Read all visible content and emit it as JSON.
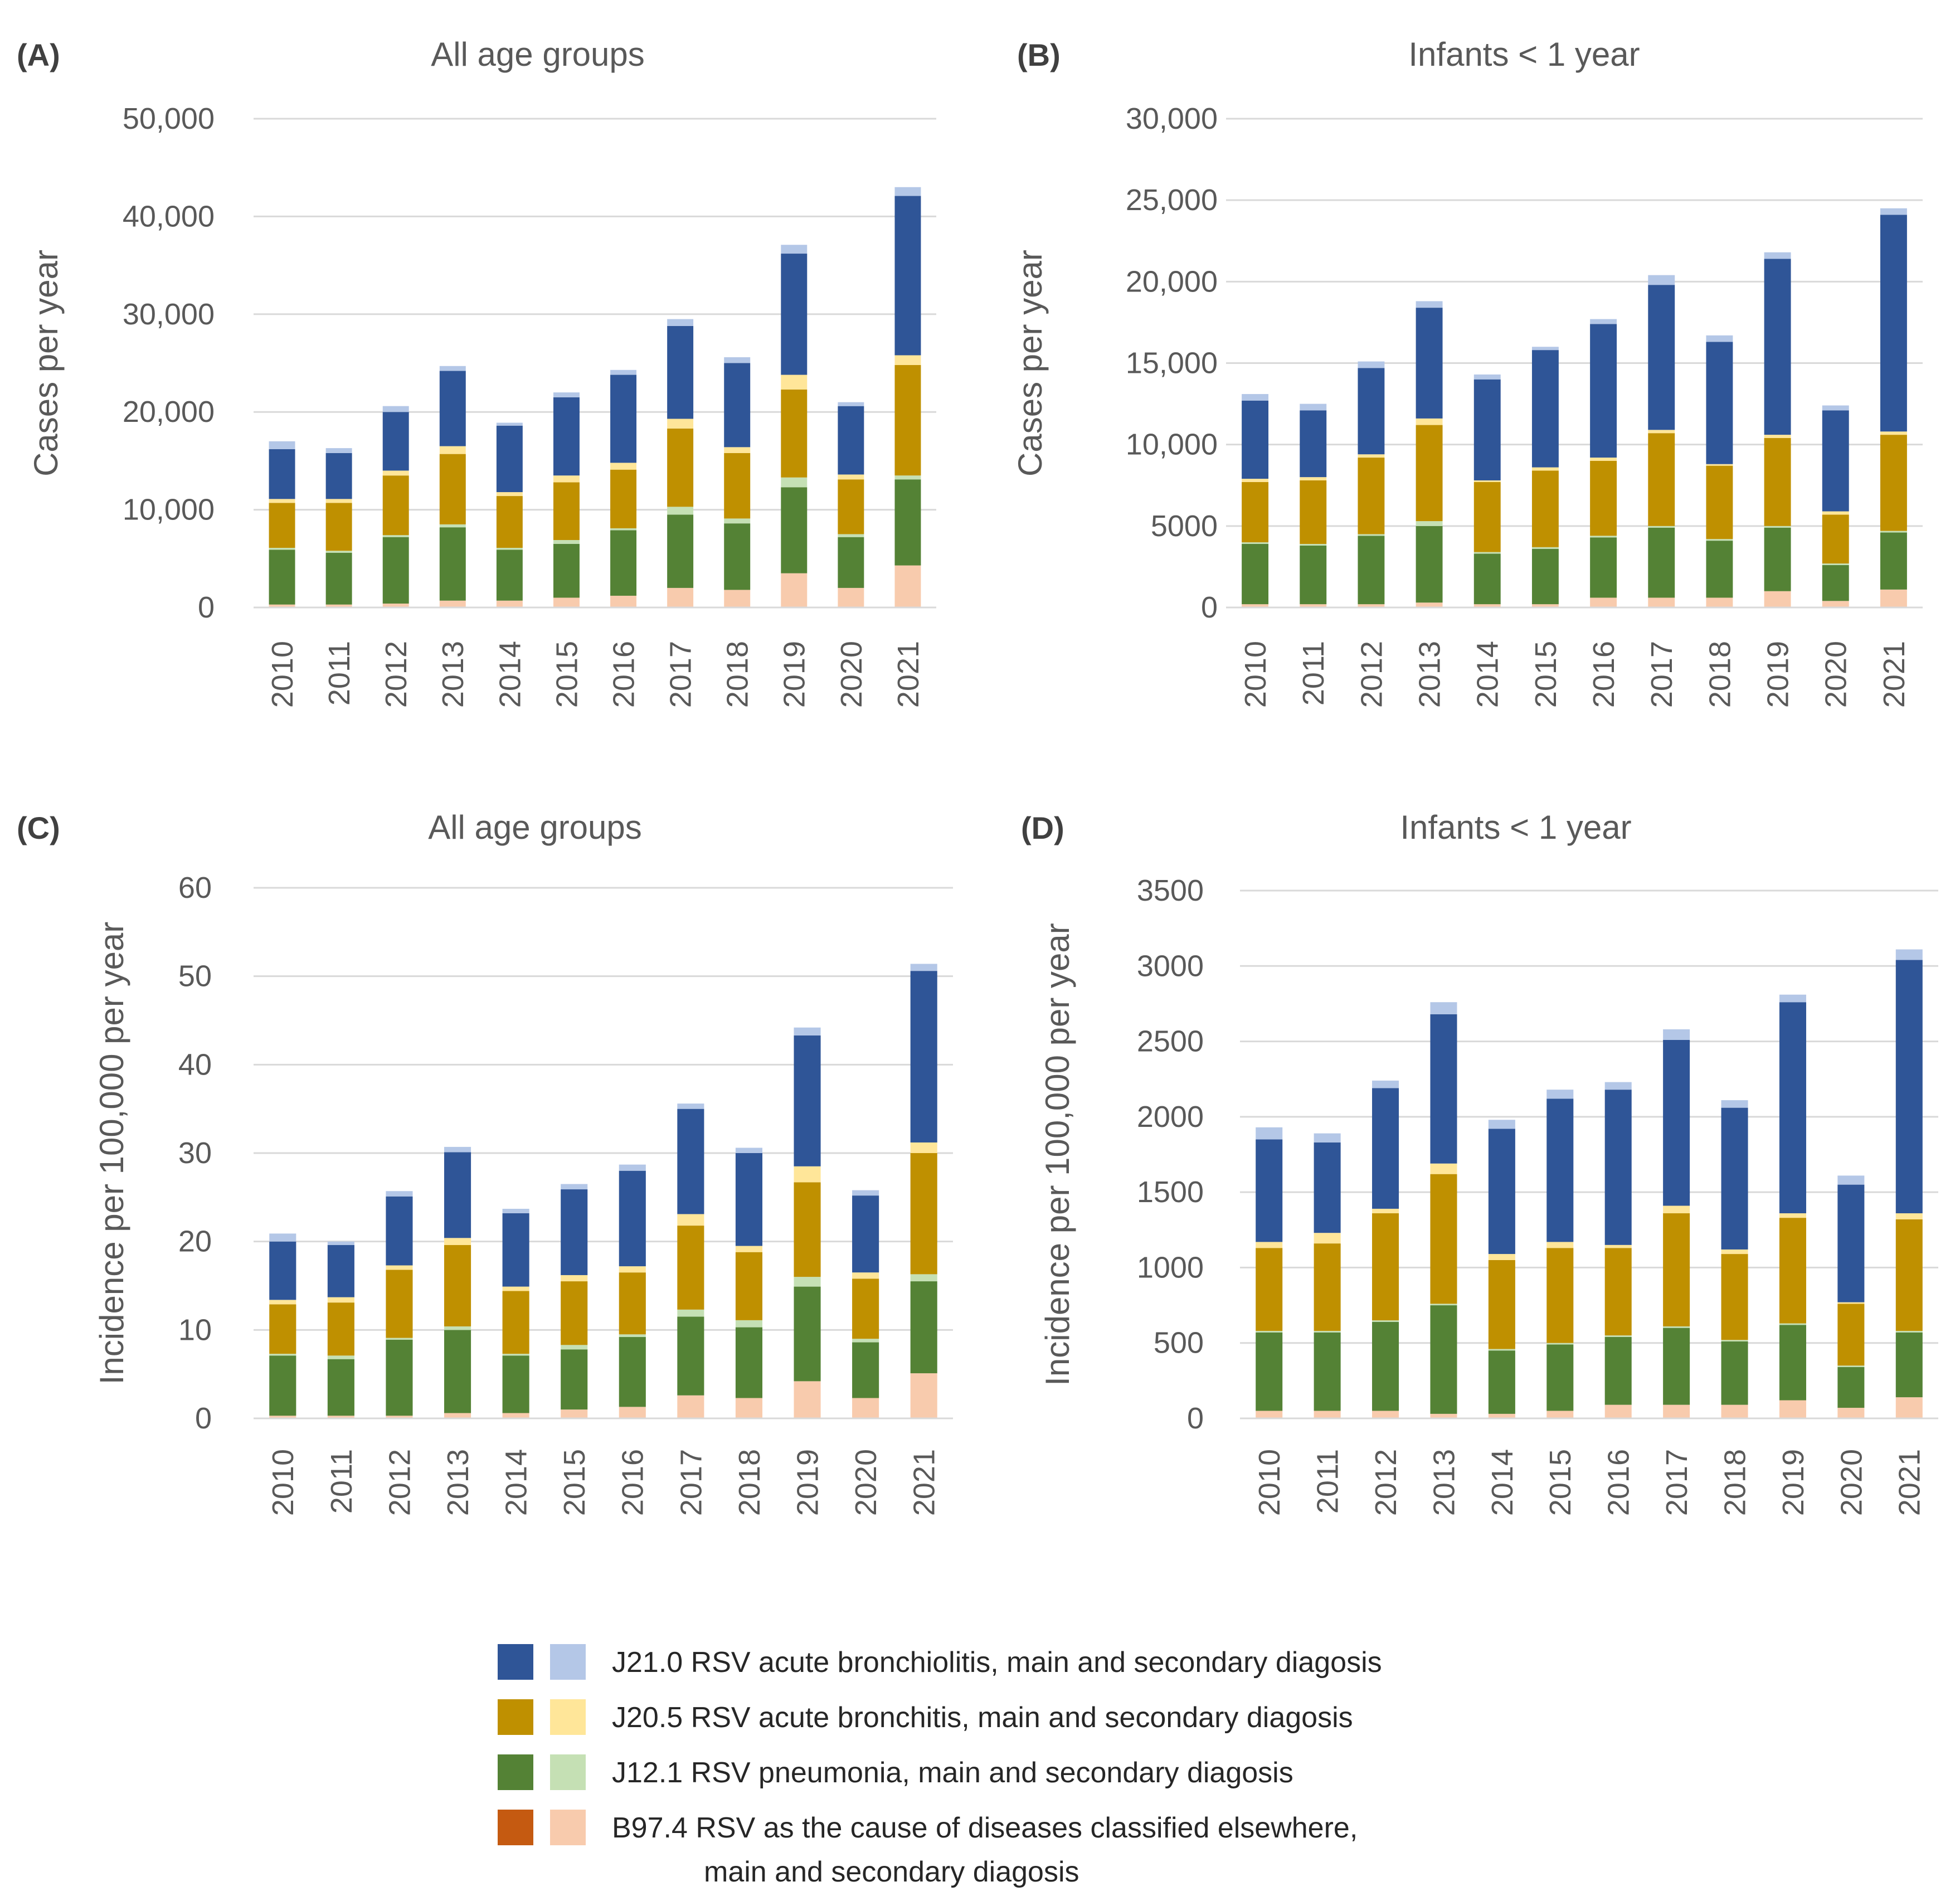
{
  "legend": {
    "items": [
      {
        "label": "J21.0 RSV acute bronchiolitis, main and secondary diagosis",
        "main_color": "#2f5597",
        "secondary_color": "#b4c7e7"
      },
      {
        "label": "J20.5 RSV acute bronchitis, main and secondary diagosis",
        "main_color": "#bf9000",
        "secondary_color": "#ffe699"
      },
      {
        "label": "J12.1 RSV pneumonia, main and secondary diagosis",
        "main_color": "#548235",
        "secondary_color": "#c5e0b4"
      },
      {
        "label": "B97.4 RSV as the cause of diseases classified elsewhere,",
        "label_line2": "main and secondary diagosis",
        "main_color": "#c55a11",
        "secondary_color": "#f8cbad"
      }
    ]
  },
  "chart_data": [
    {
      "id": "A",
      "panel_label": "(A)",
      "type": "bar",
      "stacked": true,
      "title": "All age groups",
      "ylabel": "Cases per year",
      "xlabel": "",
      "ylim": [
        0,
        50000
      ],
      "yticks": [
        0,
        10000,
        20000,
        30000,
        40000,
        50000
      ],
      "ytick_labels": [
        "0",
        "10,000",
        "20,000",
        "30,000",
        "40,000",
        "50,000"
      ],
      "categories": [
        "2010",
        "2011",
        "2012",
        "2013",
        "2014",
        "2015",
        "2016",
        "2017",
        "2018",
        "2019",
        "2020",
        "2021"
      ],
      "series": [
        {
          "name": "B97.4 main",
          "color": "#c55a11",
          "values": [
            0,
            0,
            0,
            0,
            0,
            0,
            0,
            0,
            0,
            0,
            0,
            0
          ]
        },
        {
          "name": "B97.4 secondary",
          "color": "#f8cbad",
          "values": [
            300,
            300,
            400,
            700,
            700,
            1000,
            1200,
            2000,
            1800,
            3500,
            2000,
            4300
          ]
        },
        {
          "name": "J12.1 main",
          "color": "#548235",
          "values": [
            5600,
            5300,
            6800,
            7500,
            5200,
            5500,
            6700,
            7500,
            6800,
            8800,
            5200,
            8800
          ]
        },
        {
          "name": "J12.1 secondary",
          "color": "#c5e0b4",
          "values": [
            200,
            200,
            200,
            300,
            200,
            400,
            200,
            800,
            500,
            1000,
            300,
            400
          ]
        },
        {
          "name": "J20.5 main",
          "color": "#bf9000",
          "values": [
            4600,
            4900,
            6100,
            7200,
            5300,
            5900,
            6000,
            8000,
            6700,
            9000,
            5600,
            11300
          ]
        },
        {
          "name": "J20.5 secondary",
          "color": "#ffe699",
          "values": [
            400,
            400,
            500,
            800,
            400,
            700,
            700,
            1000,
            600,
            1500,
            500,
            1000
          ]
        },
        {
          "name": "J21.0 main",
          "color": "#2f5597",
          "values": [
            5100,
            4700,
            6000,
            7700,
            6800,
            8000,
            9000,
            9500,
            8600,
            12400,
            7000,
            16300
          ]
        },
        {
          "name": "J21.0 secondary",
          "color": "#b4c7e7",
          "values": [
            800,
            500,
            600,
            500,
            300,
            500,
            500,
            700,
            600,
            900,
            400,
            900
          ]
        }
      ]
    },
    {
      "id": "B",
      "panel_label": "(B)",
      "type": "bar",
      "stacked": true,
      "title": "Infants < 1 year",
      "ylabel": "Cases per year",
      "xlabel": "",
      "ylim": [
        0,
        30000
      ],
      "yticks": [
        0,
        5000,
        10000,
        15000,
        20000,
        25000,
        30000
      ],
      "ytick_labels": [
        "0",
        "5000",
        "10,000",
        "15,000",
        "20,000",
        "25,000",
        "30,000"
      ],
      "categories": [
        "2010",
        "2011",
        "2012",
        "2013",
        "2014",
        "2015",
        "2016",
        "2017",
        "2018",
        "2019",
        "2020",
        "2021"
      ],
      "series": [
        {
          "name": "B97.4 main",
          "color": "#c55a11",
          "values": [
            0,
            0,
            0,
            0,
            0,
            0,
            0,
            0,
            0,
            0,
            0,
            0
          ]
        },
        {
          "name": "B97.4 secondary",
          "color": "#f8cbad",
          "values": [
            200,
            200,
            200,
            300,
            200,
            200,
            600,
            600,
            600,
            1000,
            400,
            1100
          ]
        },
        {
          "name": "J12.1 main",
          "color": "#548235",
          "values": [
            3700,
            3600,
            4200,
            4700,
            3100,
            3400,
            3700,
            4300,
            3500,
            3900,
            2200,
            3500
          ]
        },
        {
          "name": "J12.1 secondary",
          "color": "#c5e0b4",
          "values": [
            100,
            100,
            100,
            300,
            100,
            100,
            100,
            100,
            100,
            100,
            100,
            100
          ]
        },
        {
          "name": "J20.5 main",
          "color": "#bf9000",
          "values": [
            3700,
            3900,
            4700,
            5900,
            4300,
            4700,
            4600,
            5700,
            4500,
            5400,
            3000,
            5900
          ]
        },
        {
          "name": "J20.5 secondary",
          "color": "#ffe699",
          "values": [
            200,
            200,
            200,
            400,
            100,
            200,
            200,
            200,
            100,
            200,
            200,
            200
          ]
        },
        {
          "name": "J21.0 main",
          "color": "#2f5597",
          "values": [
            4800,
            4100,
            5300,
            6800,
            6200,
            7200,
            8200,
            8900,
            7500,
            10800,
            6200,
            13300
          ]
        },
        {
          "name": "J21.0 secondary",
          "color": "#b4c7e7",
          "values": [
            400,
            400,
            400,
            400,
            300,
            200,
            300,
            600,
            400,
            400,
            300,
            400
          ]
        }
      ]
    },
    {
      "id": "C",
      "panel_label": "(C)",
      "type": "bar",
      "stacked": true,
      "title": "All age groups",
      "ylabel": "Incidence per 100,000 per year",
      "xlabel": "",
      "ylim": [
        0,
        60
      ],
      "yticks": [
        0,
        10,
        20,
        30,
        40,
        50,
        60
      ],
      "ytick_labels": [
        "0",
        "10",
        "20",
        "30",
        "40",
        "50",
        "60"
      ],
      "categories": [
        "2010",
        "2011",
        "2012",
        "2013",
        "2014",
        "2015",
        "2016",
        "2017",
        "2018",
        "2019",
        "2020",
        "2021"
      ],
      "series": [
        {
          "name": "B97.4 main",
          "color": "#c55a11",
          "values": [
            0,
            0,
            0,
            0,
            0,
            0,
            0,
            0,
            0,
            0,
            0,
            0
          ]
        },
        {
          "name": "B97.4 secondary",
          "color": "#f8cbad",
          "values": [
            0.3,
            0.3,
            0.3,
            0.6,
            0.6,
            1.0,
            1.3,
            2.6,
            2.3,
            4.2,
            2.3,
            5.1
          ]
        },
        {
          "name": "J12.1 main",
          "color": "#548235",
          "values": [
            6.8,
            6.4,
            8.6,
            9.4,
            6.5,
            6.8,
            7.9,
            8.9,
            8.0,
            10.7,
            6.3,
            10.4
          ]
        },
        {
          "name": "J12.1 secondary",
          "color": "#c5e0b4",
          "values": [
            0.2,
            0.4,
            0.2,
            0.4,
            0.2,
            0.5,
            0.3,
            0.8,
            0.8,
            1.1,
            0.4,
            0.8
          ]
        },
        {
          "name": "J20.5 main",
          "color": "#bf9000",
          "values": [
            5.6,
            6.0,
            7.7,
            9.2,
            7.1,
            7.2,
            7.0,
            9.5,
            7.7,
            10.7,
            6.8,
            13.7
          ]
        },
        {
          "name": "J20.5 secondary",
          "color": "#ffe699",
          "values": [
            0.5,
            0.6,
            0.5,
            0.8,
            0.5,
            0.7,
            0.7,
            1.3,
            0.7,
            1.8,
            0.7,
            1.2
          ]
        },
        {
          "name": "J21.0 main",
          "color": "#2f5597",
          "values": [
            6.6,
            5.9,
            7.8,
            9.7,
            8.3,
            9.7,
            10.8,
            11.9,
            10.5,
            14.8,
            8.7,
            19.4
          ]
        },
        {
          "name": "J21.0 secondary",
          "color": "#b4c7e7",
          "values": [
            0.9,
            0.4,
            0.6,
            0.6,
            0.5,
            0.6,
            0.7,
            0.6,
            0.6,
            0.9,
            0.6,
            0.8
          ]
        }
      ]
    },
    {
      "id": "D",
      "panel_label": "(D)",
      "type": "bar",
      "stacked": true,
      "title": "Infants < 1 year",
      "ylabel": "Incidence per 100,000 per year",
      "xlabel": "",
      "ylim": [
        0,
        3500
      ],
      "yticks": [
        0,
        500,
        1000,
        1500,
        2000,
        2500,
        3000,
        3500
      ],
      "ytick_labels": [
        "0",
        "500",
        "1000",
        "1500",
        "2000",
        "2500",
        "3000",
        "3500"
      ],
      "categories": [
        "2010",
        "2011",
        "2012",
        "2013",
        "2014",
        "2015",
        "2016",
        "2017",
        "2018",
        "2019",
        "2020",
        "2021"
      ],
      "series": [
        {
          "name": "B97.4 main",
          "color": "#c55a11",
          "values": [
            0,
            0,
            0,
            0,
            0,
            0,
            0,
            0,
            0,
            0,
            0,
            0
          ]
        },
        {
          "name": "B97.4 secondary",
          "color": "#f8cbad",
          "values": [
            50,
            50,
            50,
            30,
            30,
            50,
            90,
            90,
            90,
            120,
            70,
            140
          ]
        },
        {
          "name": "J12.1 main",
          "color": "#548235",
          "values": [
            520,
            520,
            590,
            720,
            420,
            440,
            450,
            510,
            420,
            500,
            270,
            430
          ]
        },
        {
          "name": "J12.1 secondary",
          "color": "#c5e0b4",
          "values": [
            10,
            10,
            10,
            10,
            10,
            10,
            10,
            10,
            10,
            10,
            10,
            10
          ]
        },
        {
          "name": "J20.5 main",
          "color": "#bf9000",
          "values": [
            550,
            580,
            710,
            860,
            590,
            630,
            580,
            750,
            570,
            700,
            410,
            740
          ]
        },
        {
          "name": "J20.5 secondary",
          "color": "#ffe699",
          "values": [
            40,
            70,
            30,
            70,
            40,
            40,
            20,
            50,
            30,
            30,
            10,
            40
          ]
        },
        {
          "name": "J21.0 main",
          "color": "#2f5597",
          "values": [
            680,
            600,
            800,
            990,
            830,
            950,
            1030,
            1100,
            940,
            1400,
            780,
            1680
          ]
        },
        {
          "name": "J21.0 secondary",
          "color": "#b4c7e7",
          "values": [
            80,
            60,
            50,
            80,
            60,
            60,
            50,
            70,
            50,
            50,
            60,
            70
          ]
        }
      ]
    }
  ]
}
